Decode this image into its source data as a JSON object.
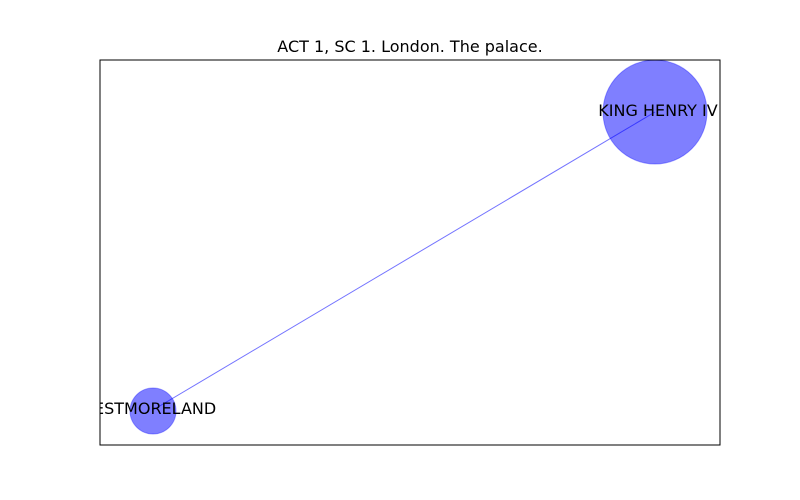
{
  "figure": {
    "title": "ACT 1, SC 1. London. The palace."
  },
  "graph": {
    "node_color": "#0000ff",
    "node_opacity": 0.5,
    "edge_color": "#0000ff",
    "nodes": [
      {
        "id": "king-henry-iv",
        "label": "KING HENRY IV"
      },
      {
        "id": "westmoreland",
        "label": "ESTMORELAND"
      }
    ],
    "edges": [
      {
        "source": "king-henry-iv",
        "target": "westmoreland"
      }
    ]
  }
}
